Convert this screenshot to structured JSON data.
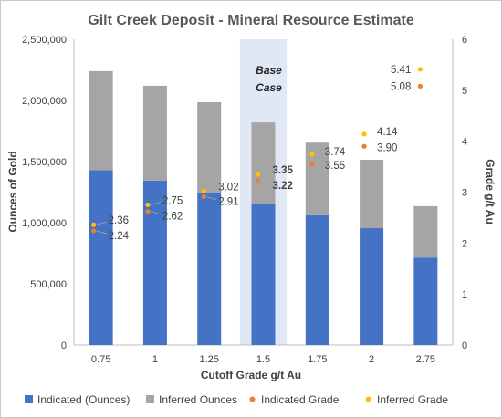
{
  "chart_data": {
    "type": "bar",
    "title": "Gilt Creek Deposit - Mineral Resource Estimate",
    "xlabel": "Cutoff Grade g/t Au",
    "ylabel": "Ounces of Gold",
    "y2label": "Grade g/t Au",
    "categories": [
      "0.75",
      "1",
      "1.25",
      "1.5",
      "1.75",
      "2",
      "2.75"
    ],
    "ylim": [
      0,
      2500000
    ],
    "y2lim": [
      0,
      6
    ],
    "yticks": [
      "0",
      "500,000",
      "1,000,000",
      "1,500,000",
      "2,000,000",
      "2,500,000"
    ],
    "y2ticks": [
      "0",
      "1",
      "2",
      "3",
      "4",
      "5",
      "6"
    ],
    "stacked": true,
    "grid": false,
    "legend_position": "bottom",
    "series": [
      {
        "name": "Indicated (Ounces)",
        "type": "bar",
        "axis": "left",
        "color": "#4472C4",
        "values": [
          1430000,
          1345000,
          1240000,
          1155000,
          1060000,
          955000,
          715000
        ]
      },
      {
        "name": "Inferred Ounces",
        "type": "bar",
        "axis": "left",
        "color": "#A5A5A5",
        "values": [
          810000,
          775000,
          745000,
          665000,
          595000,
          560000,
          420000
        ]
      },
      {
        "name": "Indicated Grade",
        "type": "scatter",
        "axis": "right",
        "color": "#ED7D31",
        "values": [
          2.24,
          2.62,
          2.91,
          3.22,
          3.55,
          3.9,
          5.08
        ],
        "labels": [
          "2.24",
          "2.62",
          "2.91",
          "3.22",
          "3.55",
          "3.90",
          "5.08"
        ]
      },
      {
        "name": "Inferred Grade",
        "type": "scatter",
        "axis": "right",
        "color": "#FFC000",
        "values": [
          2.36,
          2.75,
          3.02,
          3.35,
          3.74,
          4.14,
          5.41
        ],
        "labels": [
          "2.36",
          "2.75",
          "3.02",
          "3.35",
          "3.74",
          "4.14",
          "5.41"
        ]
      }
    ],
    "annotations": [
      {
        "text_line1": "Base",
        "text_line2": "Case",
        "category": "1.5"
      }
    ]
  }
}
